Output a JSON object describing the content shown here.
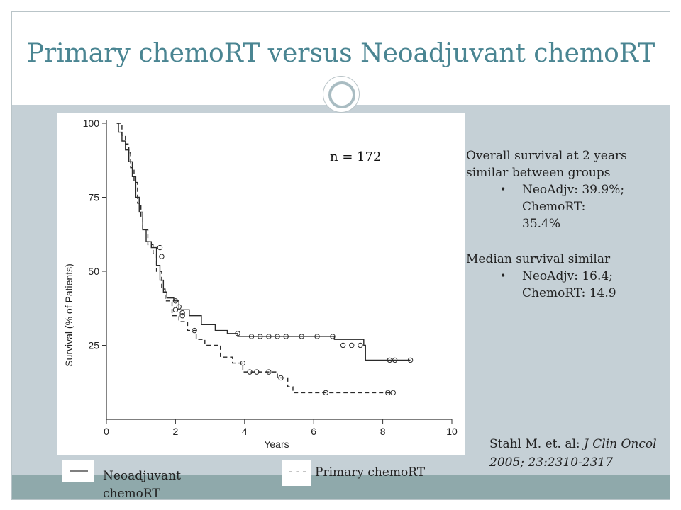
{
  "slide": {
    "title": "Primary chemoRT versus Neoadjuvant chemoRT",
    "n_label": "n = 172",
    "side_heading_1": "Overall survival at 2 years similar between groups",
    "bullet_1_line1": "NeoAdjv: 39.9%;",
    "bullet_1_line2": "ChemoRT:",
    "bullet_1_line3": "35.4%",
    "side_heading_2": "Median survival similar",
    "bullet_2_line1": "NeoAdjv: 16.4;",
    "bullet_2_line2": "ChemoRT: 14.9",
    "bullet_glyph": "•",
    "citation_prefix": "Stahl M. et. al: ",
    "citation_italic": "J Clin Oncol 2005; 23:2310-2317",
    "legend_solid_label": "Neoadjuvant chemoRT",
    "legend_dashed_label": "Primary chemoRT",
    "legend_dashed_glyph": "---"
  },
  "colors": {
    "title": "#4a8592",
    "content_bg": "#c5d0d6",
    "bottom_band": "#8fa9ab",
    "curve": "#2a2a2a"
  },
  "chart_data": {
    "type": "line",
    "title": "",
    "xlabel": "Years",
    "ylabel": "Survival (% of Patients)",
    "xlim": [
      0,
      10
    ],
    "ylim": [
      0,
      100
    ],
    "x_ticks": [
      0,
      2,
      4,
      6,
      8,
      10
    ],
    "y_ticks": [
      25,
      50,
      75,
      100
    ],
    "grid": false,
    "series": [
      {
        "style": "solid",
        "points": [
          [
            0.3,
            100
          ],
          [
            0.35,
            97
          ],
          [
            0.45,
            94
          ],
          [
            0.55,
            91
          ],
          [
            0.65,
            87
          ],
          [
            0.75,
            82
          ],
          [
            0.85,
            75
          ],
          [
            0.95,
            70
          ],
          [
            1.05,
            64
          ],
          [
            1.15,
            60
          ],
          [
            1.3,
            58
          ],
          [
            1.45,
            52
          ],
          [
            1.55,
            47
          ],
          [
            1.65,
            43
          ],
          [
            1.75,
            41
          ],
          [
            1.95,
            40
          ],
          [
            2.1,
            37
          ],
          [
            2.4,
            35
          ],
          [
            2.75,
            32
          ],
          [
            3.15,
            30
          ],
          [
            3.5,
            29
          ],
          [
            3.8,
            28
          ],
          [
            6.6,
            27
          ],
          [
            7.45,
            25
          ],
          [
            7.5,
            20
          ],
          [
            8.8,
            20
          ]
        ],
        "censored": [
          [
            1.55,
            58
          ],
          [
            2.0,
            40
          ],
          [
            2.1,
            38
          ],
          [
            2.2,
            36
          ],
          [
            3.8,
            29
          ],
          [
            4.2,
            28
          ],
          [
            4.45,
            28
          ],
          [
            4.7,
            28
          ],
          [
            4.95,
            28
          ],
          [
            5.2,
            28
          ],
          [
            5.65,
            28
          ],
          [
            6.1,
            28
          ],
          [
            6.55,
            28
          ],
          [
            6.85,
            25
          ],
          [
            7.1,
            25
          ],
          [
            7.35,
            25
          ],
          [
            8.2,
            20
          ],
          [
            8.35,
            20
          ],
          [
            8.8,
            20
          ]
        ]
      },
      {
        "style": "dashed",
        "points": [
          [
            0.3,
            100
          ],
          [
            0.45,
            96
          ],
          [
            0.55,
            93
          ],
          [
            0.65,
            90
          ],
          [
            0.7,
            85
          ],
          [
            0.8,
            80
          ],
          [
            0.9,
            73
          ],
          [
            1.0,
            68
          ],
          [
            1.05,
            64
          ],
          [
            1.2,
            59
          ],
          [
            1.35,
            56
          ],
          [
            1.45,
            50
          ],
          [
            1.6,
            44
          ],
          [
            1.7,
            40
          ],
          [
            1.9,
            35
          ],
          [
            2.1,
            33
          ],
          [
            2.35,
            30
          ],
          [
            2.6,
            27
          ],
          [
            2.85,
            25
          ],
          [
            3.3,
            21
          ],
          [
            3.65,
            19
          ],
          [
            3.95,
            16
          ],
          [
            4.95,
            14
          ],
          [
            5.25,
            11
          ],
          [
            5.4,
            9
          ],
          [
            8.3,
            9
          ]
        ],
        "censored": [
          [
            1.6,
            55
          ],
          [
            2.0,
            37
          ],
          [
            2.2,
            35
          ],
          [
            2.55,
            30
          ],
          [
            3.95,
            19
          ],
          [
            4.15,
            16
          ],
          [
            4.35,
            16
          ],
          [
            4.7,
            16
          ],
          [
            5.05,
            14
          ],
          [
            6.35,
            9
          ],
          [
            8.15,
            9
          ],
          [
            8.3,
            9
          ]
        ]
      }
    ]
  }
}
